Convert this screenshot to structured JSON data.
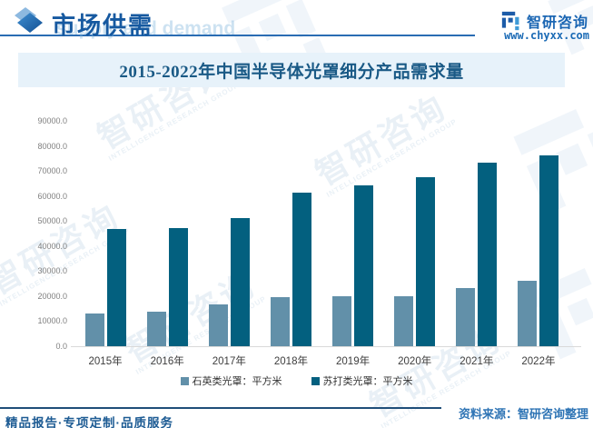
{
  "header": {
    "section_title": "市场供需",
    "header_watermark": "supply and demand",
    "brand_name": "智研咨询",
    "website": "www.chyxx.com"
  },
  "chart_data": {
    "type": "bar",
    "title": "2015-2022年中国半导体光罩细分产品需求量",
    "categories": [
      "2015年",
      "2016年",
      "2017年",
      "2018年",
      "2019年",
      "2020年",
      "2021年",
      "2022年"
    ],
    "series": [
      {
        "name": "石英类光罩：平方米",
        "color": "#6290a9",
        "values": [
          13000,
          13800,
          16700,
          19600,
          19900,
          20000,
          23200,
          26100
        ]
      },
      {
        "name": "苏打类光罩：平方米",
        "color": "#03607f",
        "values": [
          46700,
          47200,
          51100,
          61300,
          64200,
          67500,
          73300,
          76200
        ]
      }
    ],
    "ylim": [
      0,
      90000
    ],
    "ytick_step": 10000,
    "ytick_decimals": 1,
    "grid": false,
    "legend_position": "bottom"
  },
  "watermark": {
    "cn": "智研咨询",
    "en": "INTELLIGENCE RESEARCH GROUP"
  },
  "footer": {
    "tagline": "精品报告·专项定制·品质服务",
    "source": "资料来源：智研咨询整理"
  },
  "colors": {
    "accent_blue": "#1659a0",
    "title_strip_bg": "#e7f2fa",
    "chart_title_text": "#1a5a86",
    "bar_light": "#6290a9",
    "bar_dark": "#03607f",
    "axis_text": "#808080",
    "footer_rule": "#1f4e79",
    "source_text": "#2e74b5"
  }
}
